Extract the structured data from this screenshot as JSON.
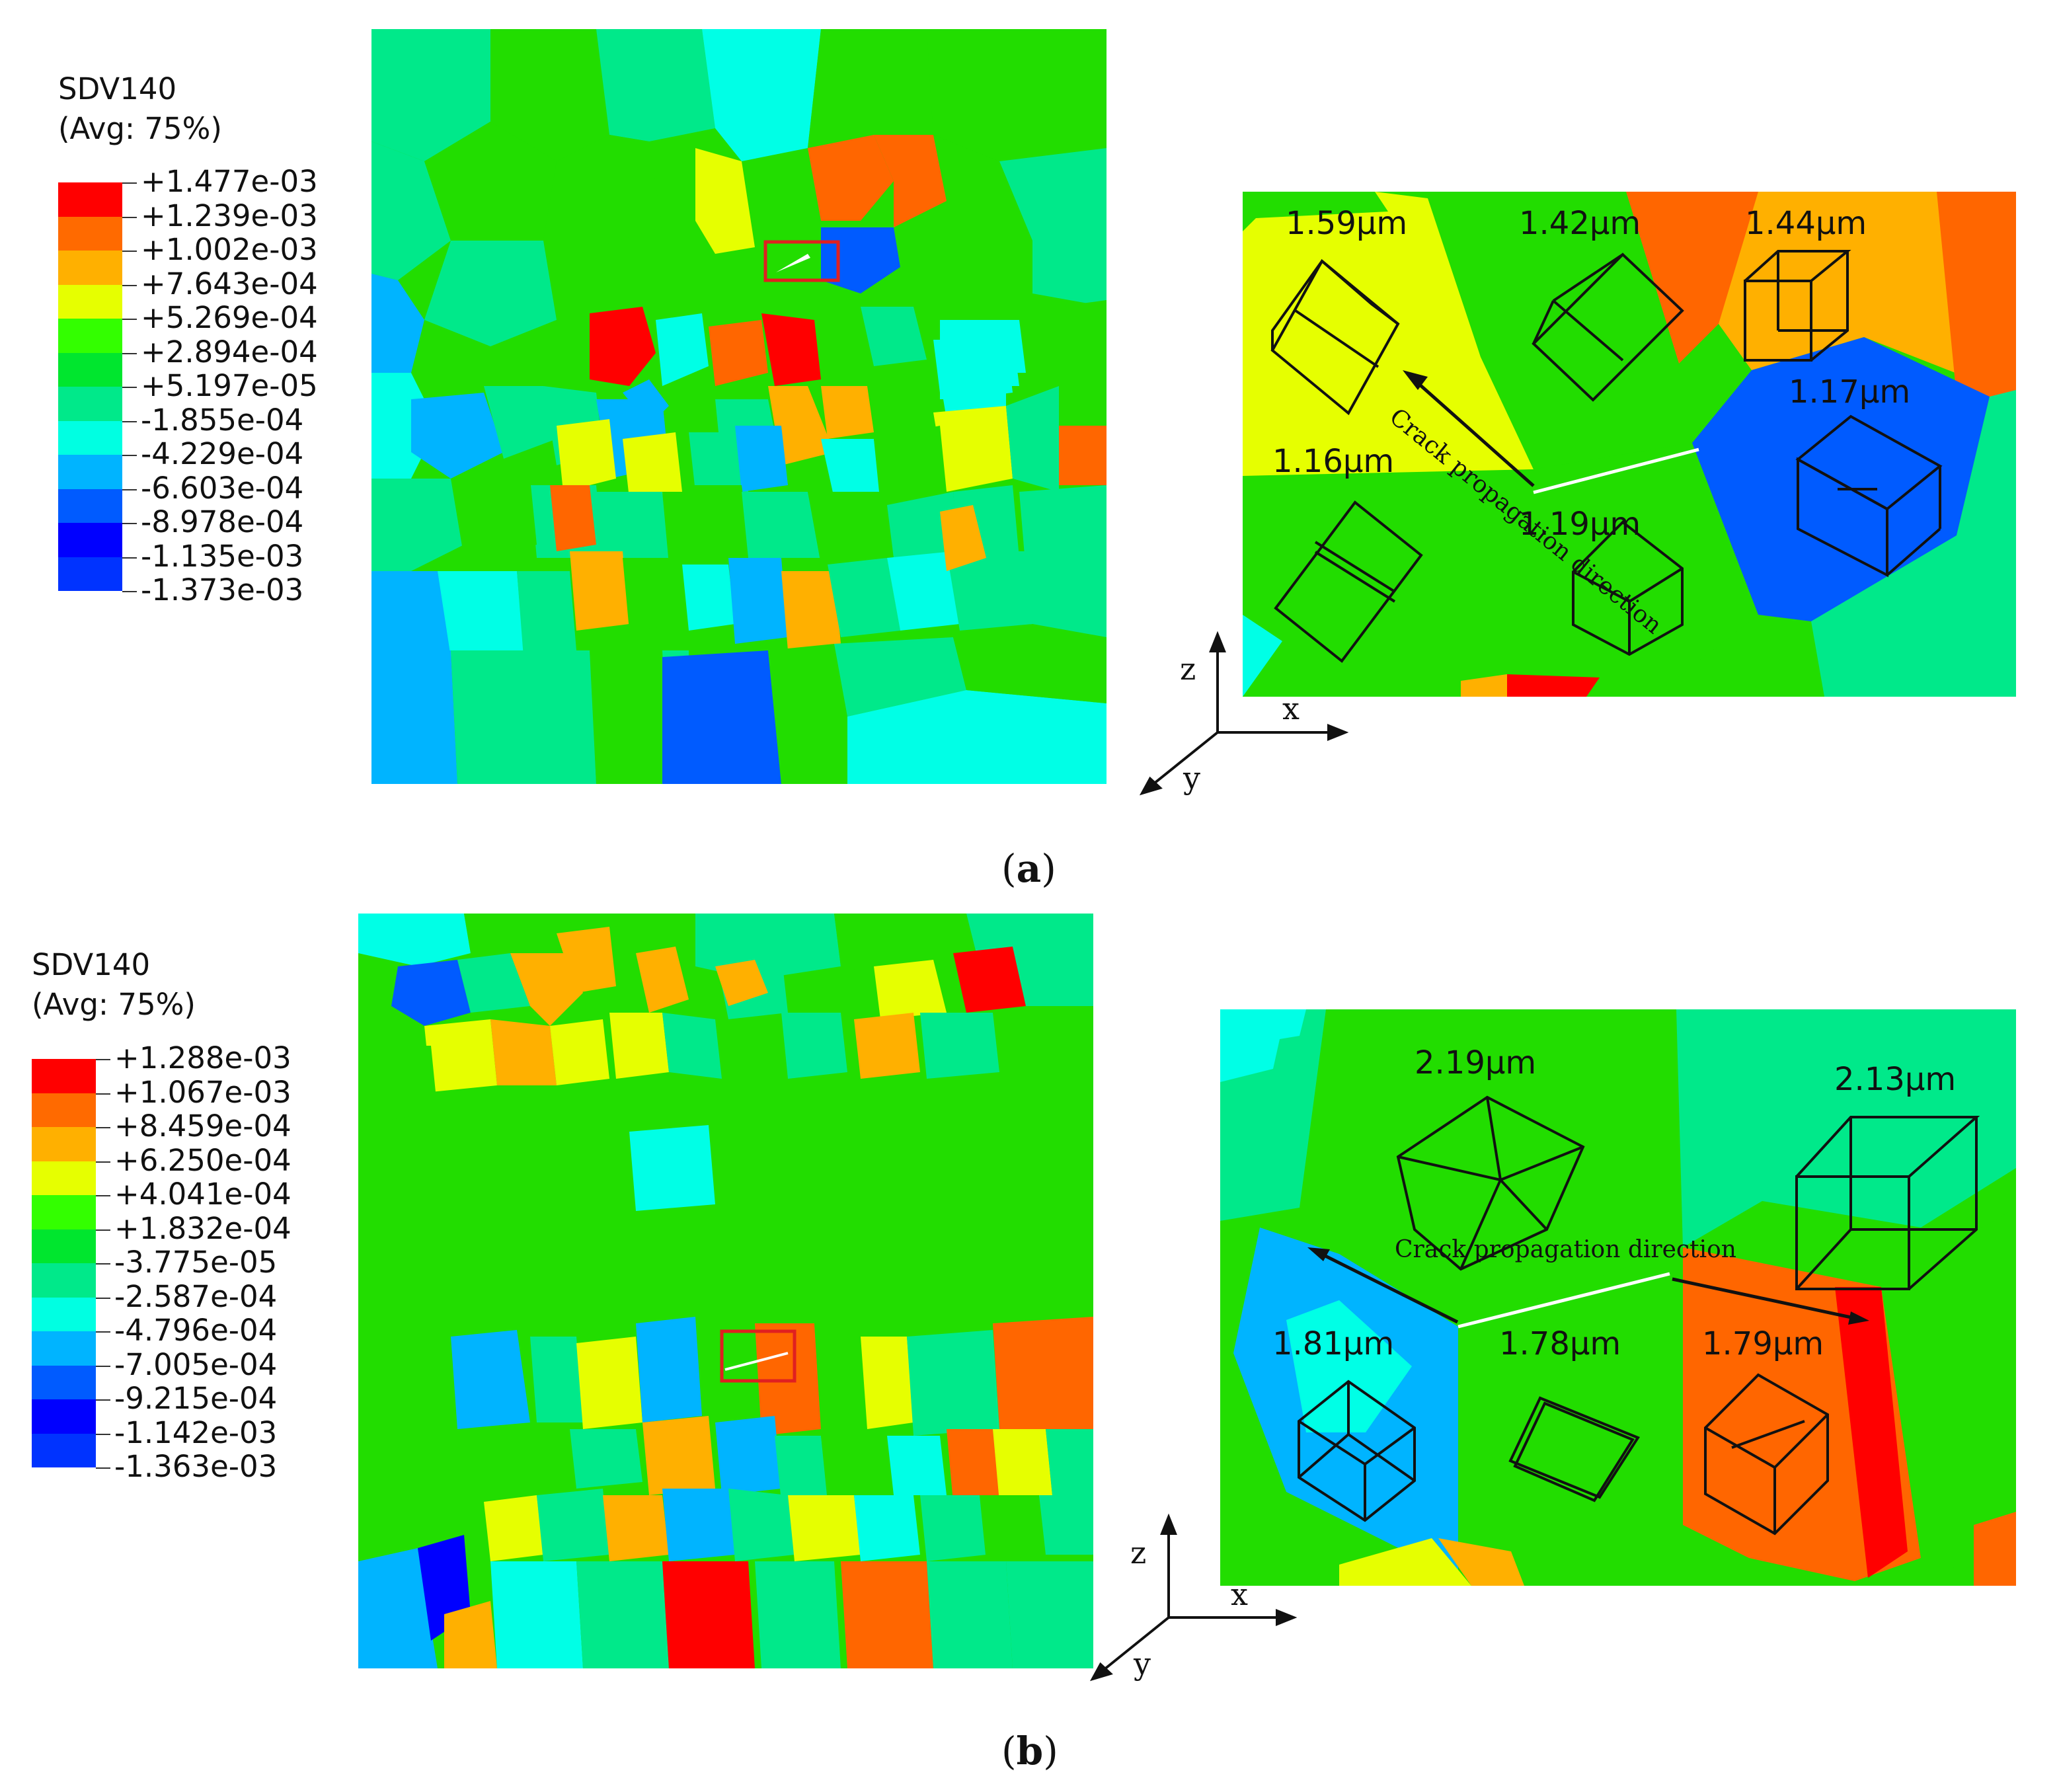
{
  "panels": [
    {
      "label": "a",
      "legend": {
        "title_line1": "SDV140",
        "title_line2": "(Avg: 75%)",
        "values": [
          "+1.477e-03",
          "+1.239e-03",
          "+1.002e-03",
          "+7.643e-04",
          "+5.269e-04",
          "+2.894e-04",
          "+5.197e-05",
          "-1.855e-04",
          "-4.229e-04",
          "-6.603e-04",
          "-8.978e-04",
          "-1.135e-03",
          "-1.373e-03"
        ],
        "colors": [
          "#ff0000",
          "#ff6a00",
          "#ffb000",
          "#e6ff00",
          "#33ff00",
          "#00e62e",
          "#00e98a",
          "#00ffe2",
          "#00b4ff",
          "#005bff",
          "#0000ff",
          "#0033ff"
        ]
      },
      "zoom": {
        "grain_sizes": [
          "1.59μm",
          "1.42μm",
          "1.44μm",
          "1.17μm",
          "1.16μm",
          "1.19μm"
        ],
        "crack_text": "Crack propagation direction"
      },
      "axes": {
        "z": "z",
        "x": "x",
        "y": "y"
      }
    },
    {
      "label": "b",
      "legend": {
        "title_line1": "SDV140",
        "title_line2": "(Avg: 75%)",
        "values": [
          "+1.288e-03",
          "+1.067e-03",
          "+8.459e-04",
          "+6.250e-04",
          "+4.041e-04",
          "+1.832e-04",
          "-3.775e-05",
          "-2.587e-04",
          "-4.796e-04",
          "-7.005e-04",
          "-9.215e-04",
          "-1.142e-03",
          "-1.363e-03"
        ],
        "colors": [
          "#ff0000",
          "#ff6a00",
          "#ffb000",
          "#e6ff00",
          "#33ff00",
          "#00e62e",
          "#00e98a",
          "#00ffe2",
          "#00b4ff",
          "#005bff",
          "#0000ff",
          "#0033ff"
        ]
      },
      "zoom": {
        "grain_sizes": [
          "2.19μm",
          "2.13μm",
          "1.81μm",
          "1.78μm",
          "1.79μm"
        ],
        "crack_text": "Crack propagation direction"
      },
      "axes": {
        "z": "z",
        "x": "x",
        "y": "y"
      }
    }
  ],
  "palette": {
    "red": "#ff0000",
    "orange": "#ff6600",
    "amber": "#ffb000",
    "yellow": "#e6ff00",
    "green": "#22dd00",
    "mint": "#00e98a",
    "cyan": "#00ffe6",
    "sky": "#00b4ff",
    "blue": "#005bff",
    "deepblue": "#0000ff",
    "frame": "#e02020",
    "wire": "#111111"
  }
}
